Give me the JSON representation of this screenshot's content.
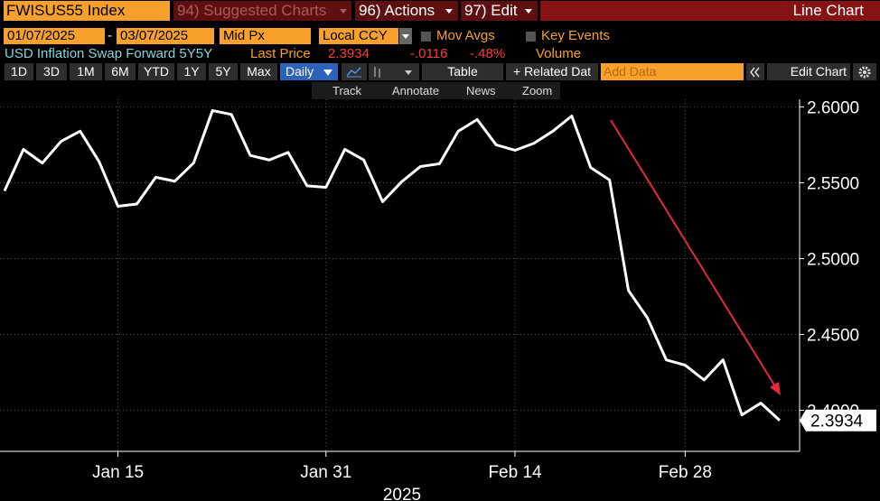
{
  "toolbar": {
    "ticker": "FWISUS55 Index",
    "menus": [
      "94) Suggested Charts",
      "96) Actions",
      "97) Edit"
    ],
    "chart_kind": "Line Chart"
  },
  "settings": {
    "start_date": "01/07/2025",
    "date_sep": "-",
    "end_date": "03/07/2025",
    "price_field": "Mid Px",
    "currency": "Local CCY",
    "mov_avgs": "Mov Avgs",
    "key_events": "Key Events"
  },
  "legend_row": {
    "security": "USD Inflation Swap Forward 5Y5Y",
    "last_price_label": "Last Price",
    "last_price": "2.3934",
    "change": "-.0116",
    "change_pct": "-.48%",
    "volume": "Volume"
  },
  "periods": [
    "1D",
    "3D",
    "1M",
    "6M",
    "YTD",
    "1Y",
    "5Y",
    "Max"
  ],
  "frequency": "Daily",
  "buttons": {
    "table": "Table",
    "related": "+ Related Dat",
    "add_data": "Add Data",
    "edit_chart": "Edit Chart"
  },
  "tools": [
    "Track",
    "Annotate",
    "News",
    "Zoom"
  ],
  "chart_data": {
    "type": "line",
    "x_label": "2025",
    "categories": [
      null,
      null,
      null,
      null,
      null,
      null,
      "Jan 15",
      null,
      null,
      null,
      null,
      null,
      null,
      null,
      null,
      null,
      null,
      "Jan 31",
      null,
      null,
      null,
      null,
      null,
      null,
      null,
      null,
      null,
      "Feb 14",
      null,
      null,
      null,
      null,
      null,
      null,
      null,
      null,
      "Feb 28",
      null,
      null,
      null,
      null,
      null
    ],
    "values": [
      2.5446,
      2.572,
      2.563,
      2.5774,
      2.584,
      2.564,
      2.5345,
      2.536,
      2.5536,
      2.551,
      2.563,
      2.5976,
      2.595,
      2.568,
      2.565,
      2.57,
      2.548,
      2.547,
      2.572,
      2.565,
      2.5375,
      2.5506,
      2.5607,
      2.5625,
      2.584,
      2.5917,
      2.575,
      2.5714,
      2.576,
      2.584,
      2.594,
      2.56,
      2.5518,
      2.479,
      2.461,
      2.4333,
      2.4298,
      2.42,
      2.4333,
      2.397,
      2.4048,
      2.3934
    ],
    "color": "#ffffff",
    "ylim": [
      2.373,
      2.605
    ],
    "yticks": [
      {
        "value": 2.4,
        "label": "2.4000"
      },
      {
        "value": 2.45,
        "label": "2.4500"
      },
      {
        "value": 2.5,
        "label": "2.5000"
      },
      {
        "value": 2.55,
        "label": "2.5500"
      },
      {
        "value": 2.6,
        "label": "2.6000"
      }
    ],
    "grid": true
  }
}
